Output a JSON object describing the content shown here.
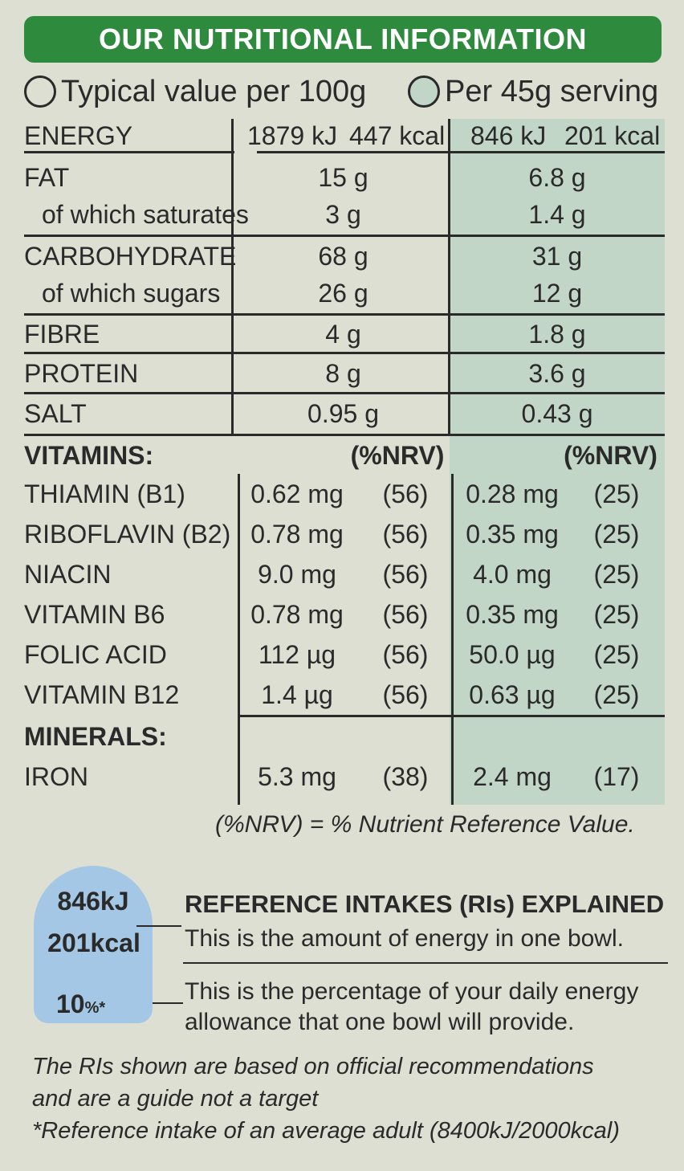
{
  "title": "OUR NUTRITIONAL INFORMATION",
  "legend": {
    "per_100g": "Typical value per 100g",
    "per_serving": "Per 45g serving"
  },
  "energy": {
    "label": "ENERGY",
    "kj_100g": "1879 kJ",
    "kcal_100g": "447 kcal",
    "kj_serving": "846 kJ",
    "kcal_serving": "201 kcal"
  },
  "nutrients": [
    {
      "label": "FAT",
      "per_100g": "15 g",
      "per_serving": "6.8 g"
    },
    {
      "label": "of which saturates",
      "per_100g": "3 g",
      "per_serving": "1.4 g"
    },
    {
      "label": "CARBOHYDRATE",
      "per_100g": "68 g",
      "per_serving": "31 g"
    },
    {
      "label": "of which sugars",
      "per_100g": "26 g",
      "per_serving": "12 g"
    },
    {
      "label": "FIBRE",
      "per_100g": "4 g",
      "per_serving": "1.8 g"
    },
    {
      "label": "PROTEIN",
      "per_100g": "8 g",
      "per_serving": "3.6 g"
    },
    {
      "label": "SALT",
      "per_100g": "0.95 g",
      "per_serving": "0.43 g"
    }
  ],
  "vitamins_header": {
    "label": "VITAMINS:",
    "nrv_100g": "(%NRV)",
    "nrv_serving": "(%NRV)"
  },
  "vitamins": [
    {
      "label": "THIAMIN (B1)",
      "amt_100g": "0.62 mg",
      "nrv_100g": "(56)",
      "amt_serving": "0.28 mg",
      "nrv_serving": "(25)"
    },
    {
      "label": "RIBOFLAVIN (B2)",
      "amt_100g": "0.78 mg",
      "nrv_100g": "(56)",
      "amt_serving": "0.35 mg",
      "nrv_serving": "(25)"
    },
    {
      "label": "NIACIN",
      "amt_100g": "9.0 mg",
      "nrv_100g": "(56)",
      "amt_serving": "4.0 mg",
      "nrv_serving": "(25)"
    },
    {
      "label": "VITAMIN B6",
      "amt_100g": "0.78 mg",
      "nrv_100g": "(56)",
      "amt_serving": "0.35 mg",
      "nrv_serving": "(25)"
    },
    {
      "label": "FOLIC ACID",
      "amt_100g": "112 µg",
      "nrv_100g": "(56)",
      "amt_serving": "50.0 µg",
      "nrv_serving": "(25)"
    },
    {
      "label": "VITAMIN B12",
      "amt_100g": "1.4 µg",
      "nrv_100g": "(56)",
      "amt_serving": "0.63 µg",
      "nrv_serving": "(25)"
    }
  ],
  "minerals_header": {
    "label": "MINERALS:"
  },
  "minerals": [
    {
      "label": "IRON",
      "amt_100g": "5.3 mg",
      "nrv_100g": "(38)",
      "amt_serving": "2.4 mg",
      "nrv_serving": "(17)"
    }
  ],
  "nrv_note": "(%NRV) = % Nutrient Reference Value.",
  "reference_intakes": {
    "badge_kj": "846kJ",
    "badge_kcal": "201kcal",
    "badge_pct": "10",
    "badge_pct_suffix": "%*",
    "title": "REFERENCE INTAKES (RIs) EXPLAINED",
    "energy_desc": "This is the amount of energy in one bowl.",
    "pct_desc": "This is the percentage of your daily energy allowance that one bowl will provide."
  },
  "footer": {
    "line1": "The RIs shown are based on official recommendations",
    "line2": "and are a guide not a target",
    "line3": "*Reference intake of an average adult (8400kJ/2000kcal)"
  },
  "colors": {
    "banner_green": "#2e8b3d",
    "serving_column": "#c2d6c8",
    "badge_blue": "#a4c7e6",
    "background": "#dcdfd2"
  }
}
